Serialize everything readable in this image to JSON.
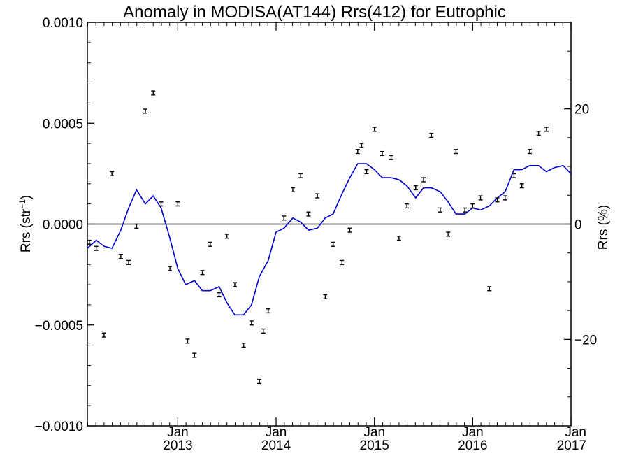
{
  "chart_data": {
    "type": "line",
    "title": "Anomaly in MODISA(AT144) Rrs(412) for Eutrophic",
    "ylabel_left": {
      "text": "Rrs (str",
      "sup": "−1",
      "tail": ")"
    },
    "ylabel_right": "Rrs (%)",
    "xlim": [
      2012.08,
      2017.0
    ],
    "ylim": [
      -0.001,
      0.001
    ],
    "y2lim": [
      -35,
      35
    ],
    "x_ticks": [
      {
        "value": 2013,
        "month": "Jan",
        "year": "2013"
      },
      {
        "value": 2014,
        "month": "Jan",
        "year": "2014"
      },
      {
        "value": 2015,
        "month": "Jan",
        "year": "2015"
      },
      {
        "value": 2016,
        "month": "Jan",
        "year": "2016"
      },
      {
        "value": 2017,
        "month": "Jan",
        "year": "2017"
      }
    ],
    "y_ticks_left": [
      {
        "value": 0.001,
        "label": "0.0010"
      },
      {
        "value": 0.0005,
        "label": "0.0005"
      },
      {
        "value": 0.0,
        "label": "0.0000"
      },
      {
        "value": -0.0005,
        "label": "−0.0005"
      },
      {
        "value": -0.001,
        "label": "−0.0010"
      }
    ],
    "y_ticks_right": [
      {
        "value": 20,
        "label": "20"
      },
      {
        "value": 0,
        "label": "0"
      },
      {
        "value": -20,
        "label": "−20"
      }
    ],
    "grid": false,
    "zero_line": true,
    "colors": {
      "line": "#0000cc",
      "points": "#000000",
      "axes": "#000000"
    },
    "series": [
      {
        "type": "errorbar",
        "error": 1e-05,
        "points": [
          [
            2012.1,
            -9e-05
          ],
          [
            2012.17,
            -0.00012
          ],
          [
            2012.25,
            -0.00055
          ],
          [
            2012.33,
            0.00025
          ],
          [
            2012.42,
            -0.00016
          ],
          [
            2012.5,
            -0.00019
          ],
          [
            2012.58,
            -1e-05
          ],
          [
            2012.67,
            0.00056
          ],
          [
            2012.75,
            0.00065
          ],
          [
            2012.83,
            0.0001
          ],
          [
            2012.92,
            -0.00022
          ],
          [
            2013.0,
            0.0001
          ],
          [
            2013.1,
            -0.00058
          ],
          [
            2013.17,
            -0.00065
          ],
          [
            2013.25,
            -0.00024
          ],
          [
            2013.33,
            -0.0001
          ],
          [
            2013.42,
            -0.00035
          ],
          [
            2013.5,
            -6e-05
          ],
          [
            2013.58,
            -0.0003
          ],
          [
            2013.67,
            -0.0006
          ],
          [
            2013.75,
            -0.00049
          ],
          [
            2013.83,
            -0.00078
          ],
          [
            2013.87,
            -0.00053
          ],
          [
            2013.92,
            -0.00043
          ],
          [
            2014.08,
            3e-05
          ],
          [
            2014.17,
            0.00017
          ],
          [
            2014.25,
            0.00024
          ],
          [
            2014.33,
            5e-05
          ],
          [
            2014.42,
            0.00014
          ],
          [
            2014.5,
            -0.00036
          ],
          [
            2014.58,
            -0.0001
          ],
          [
            2014.67,
            -0.00019
          ],
          [
            2014.75,
            -3e-05
          ],
          [
            2014.83,
            0.00036
          ],
          [
            2014.87,
            0.00039
          ],
          [
            2014.92,
            0.00026
          ],
          [
            2015.0,
            0.00047
          ],
          [
            2015.08,
            0.00035
          ],
          [
            2015.17,
            0.00033
          ],
          [
            2015.25,
            -7e-05
          ],
          [
            2015.33,
            9e-05
          ],
          [
            2015.42,
            0.00018
          ],
          [
            2015.5,
            0.00022
          ],
          [
            2015.58,
            0.00044
          ],
          [
            2015.67,
            7e-05
          ],
          [
            2015.75,
            -5e-05
          ],
          [
            2015.83,
            0.00036
          ],
          [
            2015.92,
            7e-05
          ],
          [
            2016.0,
            9e-05
          ],
          [
            2016.08,
            0.00013
          ],
          [
            2016.17,
            -0.00032
          ],
          [
            2016.25,
            0.00012
          ],
          [
            2016.33,
            0.00013
          ],
          [
            2016.42,
            0.00024
          ],
          [
            2016.5,
            0.00019
          ],
          [
            2016.58,
            0.00036
          ],
          [
            2016.67,
            0.00045
          ],
          [
            2016.75,
            0.00047
          ]
        ]
      },
      {
        "type": "line",
        "points": [
          [
            2012.08,
            -0.00012
          ],
          [
            2012.17,
            -8e-05
          ],
          [
            2012.25,
            -0.00011
          ],
          [
            2012.33,
            -0.00012
          ],
          [
            2012.42,
            -3e-05
          ],
          [
            2012.5,
            8e-05
          ],
          [
            2012.58,
            0.00017
          ],
          [
            2012.67,
            0.0001
          ],
          [
            2012.75,
            0.00014
          ],
          [
            2012.83,
            8e-05
          ],
          [
            2012.92,
            -7e-05
          ],
          [
            2013.0,
            -0.00022
          ],
          [
            2013.08,
            -0.0003
          ],
          [
            2013.17,
            -0.00028
          ],
          [
            2013.25,
            -0.00033
          ],
          [
            2013.33,
            -0.00033
          ],
          [
            2013.42,
            -0.00031
          ],
          [
            2013.5,
            -0.00039
          ],
          [
            2013.58,
            -0.00045
          ],
          [
            2013.67,
            -0.00045
          ],
          [
            2013.75,
            -0.0004
          ],
          [
            2013.83,
            -0.00026
          ],
          [
            2013.92,
            -0.00018
          ],
          [
            2014.0,
            -4e-05
          ],
          [
            2014.08,
            -2e-05
          ],
          [
            2014.17,
            3e-05
          ],
          [
            2014.25,
            1e-05
          ],
          [
            2014.33,
            -3e-05
          ],
          [
            2014.42,
            -2e-05
          ],
          [
            2014.5,
            3e-05
          ],
          [
            2014.58,
            5e-05
          ],
          [
            2014.67,
            0.00015
          ],
          [
            2014.75,
            0.00023
          ],
          [
            2014.83,
            0.0003
          ],
          [
            2014.92,
            0.0003
          ],
          [
            2015.0,
            0.00027
          ],
          [
            2015.08,
            0.00023
          ],
          [
            2015.17,
            0.00023
          ],
          [
            2015.25,
            0.00022
          ],
          [
            2015.33,
            0.00019
          ],
          [
            2015.42,
            0.00013
          ],
          [
            2015.5,
            0.00018
          ],
          [
            2015.58,
            0.00018
          ],
          [
            2015.67,
            0.00016
          ],
          [
            2015.75,
            0.00011
          ],
          [
            2015.83,
            5e-05
          ],
          [
            2015.92,
            5e-05
          ],
          [
            2016.0,
            8e-05
          ],
          [
            2016.08,
            7e-05
          ],
          [
            2016.17,
            9e-05
          ],
          [
            2016.25,
            0.00013
          ],
          [
            2016.33,
            0.00016
          ],
          [
            2016.42,
            0.00027
          ],
          [
            2016.5,
            0.00027
          ],
          [
            2016.58,
            0.00029
          ],
          [
            2016.67,
            0.00029
          ],
          [
            2016.75,
            0.00026
          ],
          [
            2016.83,
            0.00028
          ],
          [
            2016.92,
            0.00029
          ],
          [
            2017.0,
            0.00025
          ]
        ]
      }
    ]
  }
}
